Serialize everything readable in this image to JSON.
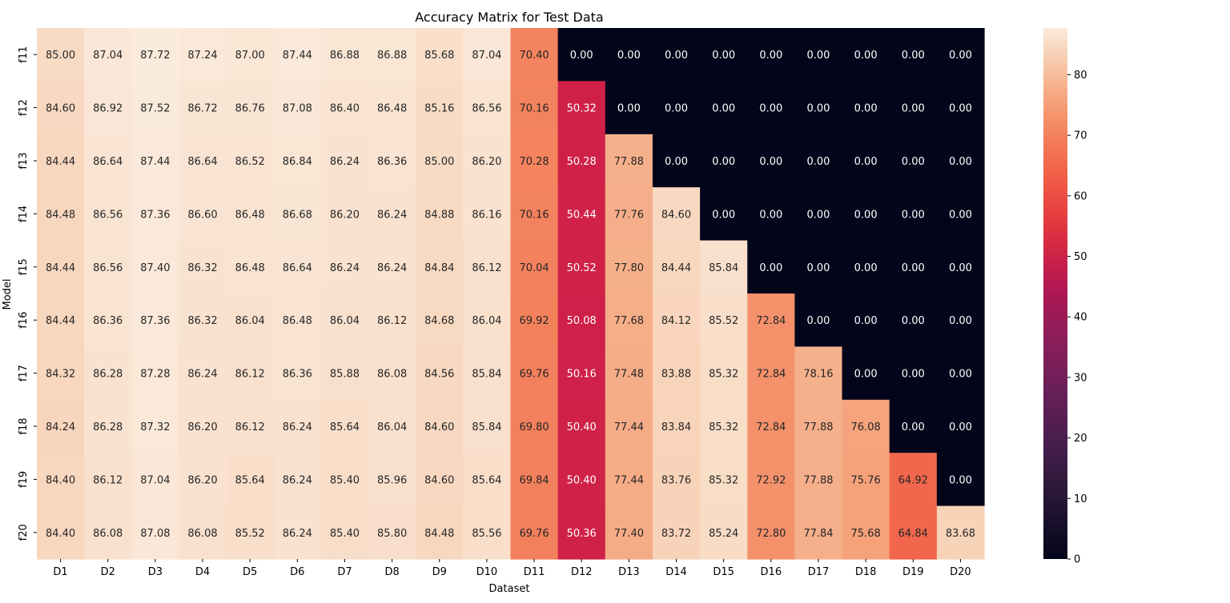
{
  "chart_data": {
    "type": "heatmap",
    "title": "Accuracy Matrix for Test Data",
    "xlabel": "Dataset",
    "ylabel": "Model",
    "x": [
      "D1",
      "D2",
      "D3",
      "D4",
      "D5",
      "D6",
      "D7",
      "D8",
      "D9",
      "D10",
      "D11",
      "D12",
      "D13",
      "D14",
      "D15",
      "D16",
      "D17",
      "D18",
      "D19",
      "D20"
    ],
    "y": [
      "f11",
      "f12",
      "f13",
      "f14",
      "f15",
      "f16",
      "f17",
      "f18",
      "f19",
      "f20"
    ],
    "values": [
      [
        85.0,
        87.04,
        87.72,
        87.24,
        87.0,
        87.44,
        86.88,
        86.88,
        85.68,
        87.04,
        70.4,
        0.0,
        0.0,
        0.0,
        0.0,
        0.0,
        0.0,
        0.0,
        0.0,
        0.0
      ],
      [
        84.6,
        86.92,
        87.52,
        86.72,
        86.76,
        87.08,
        86.4,
        86.48,
        85.16,
        86.56,
        70.16,
        50.32,
        0.0,
        0.0,
        0.0,
        0.0,
        0.0,
        0.0,
        0.0,
        0.0
      ],
      [
        84.44,
        86.64,
        87.44,
        86.64,
        86.52,
        86.84,
        86.24,
        86.36,
        85.0,
        86.2,
        70.28,
        50.28,
        77.88,
        0.0,
        0.0,
        0.0,
        0.0,
        0.0,
        0.0,
        0.0
      ],
      [
        84.48,
        86.56,
        87.36,
        86.6,
        86.48,
        86.68,
        86.2,
        86.24,
        84.88,
        86.16,
        70.16,
        50.44,
        77.76,
        84.6,
        0.0,
        0.0,
        0.0,
        0.0,
        0.0,
        0.0
      ],
      [
        84.44,
        86.56,
        87.4,
        86.32,
        86.48,
        86.64,
        86.24,
        86.24,
        84.84,
        86.12,
        70.04,
        50.52,
        77.8,
        84.44,
        85.84,
        0.0,
        0.0,
        0.0,
        0.0,
        0.0
      ],
      [
        84.44,
        86.36,
        87.36,
        86.32,
        86.04,
        86.48,
        86.04,
        86.12,
        84.68,
        86.04,
        69.92,
        50.08,
        77.68,
        84.12,
        85.52,
        72.84,
        0.0,
        0.0,
        0.0,
        0.0
      ],
      [
        84.32,
        86.28,
        87.28,
        86.24,
        86.12,
        86.36,
        85.88,
        86.08,
        84.56,
        85.84,
        69.76,
        50.16,
        77.48,
        83.88,
        85.32,
        72.84,
        78.16,
        0.0,
        0.0,
        0.0
      ],
      [
        84.24,
        86.28,
        87.32,
        86.2,
        86.12,
        86.24,
        85.64,
        86.04,
        84.6,
        85.84,
        69.8,
        50.4,
        77.44,
        83.84,
        85.32,
        72.84,
        77.88,
        76.08,
        0.0,
        0.0
      ],
      [
        84.4,
        86.12,
        87.04,
        86.2,
        85.64,
        86.24,
        85.4,
        85.96,
        84.6,
        85.64,
        69.84,
        50.4,
        77.44,
        83.76,
        85.32,
        72.92,
        77.88,
        75.76,
        64.92,
        0.0
      ],
      [
        84.4,
        86.08,
        87.08,
        86.08,
        85.52,
        86.24,
        85.4,
        85.8,
        84.48,
        85.56,
        69.76,
        50.36,
        77.4,
        83.72,
        85.24,
        72.8,
        77.84,
        75.68,
        64.84,
        83.68
      ]
    ],
    "colorbar": {
      "ticks": [
        0,
        10,
        20,
        30,
        40,
        50,
        60,
        70,
        80
      ],
      "vmin": 0,
      "vmax": 87.72
    },
    "colormap": "rocket",
    "value_format": "2 decimals",
    "grid": false,
    "legend": "colorbar-right"
  }
}
